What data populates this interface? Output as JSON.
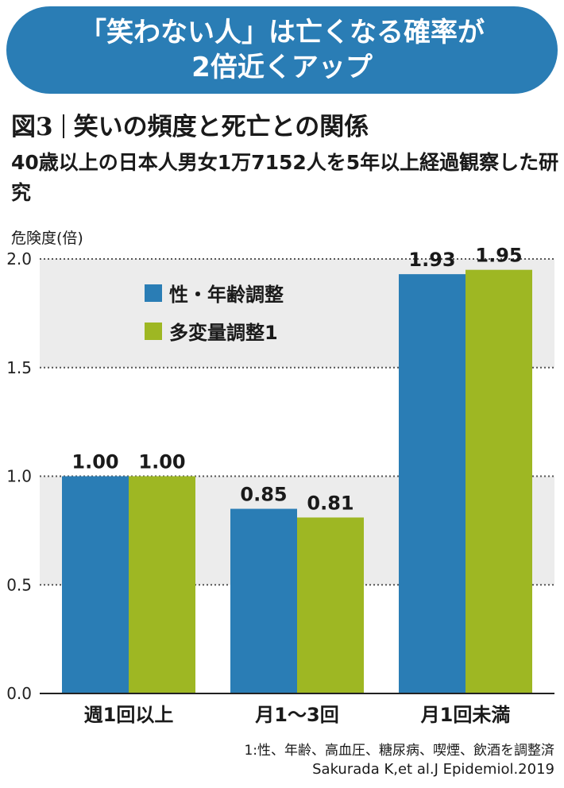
{
  "banner": {
    "line1": "「笑わない人」は亡くなる確率が",
    "line2": "2倍近くアップ"
  },
  "figure": {
    "number": "図3",
    "title": "笑いの頻度と死亡との関係",
    "subtitle": "40歳以上の日本人男女1万7152人を5年以上経過観察した研究"
  },
  "chart_data": {
    "type": "bar",
    "ylabel": "危険度(倍)",
    "ylim": [
      0,
      2.0
    ],
    "yticks": [
      "0.0",
      "0.5",
      "1.0",
      "1.5",
      "2.0"
    ],
    "grid": "dotted horizontal",
    "categories": [
      "週1回以上",
      "月1〜3回",
      "月1回未満"
    ],
    "series": [
      {
        "name": "性・年齢調整",
        "color": "#2a7db5",
        "values": [
          1.0,
          0.85,
          1.93
        ],
        "labels": [
          "1.00",
          "0.85",
          "1.93"
        ]
      },
      {
        "name": "多変量調整1",
        "color": "#9eb723",
        "values": [
          1.0,
          0.81,
          1.95
        ],
        "labels": [
          "1.00",
          "0.81",
          "1.95"
        ]
      }
    ],
    "legend": "top-left"
  },
  "notes": {
    "footnote": "1:性、年齢、高血圧、糖尿病、喫煙、飲酒を調整済",
    "source": "Sakurada K,et al.J Epidemiol.2019"
  }
}
